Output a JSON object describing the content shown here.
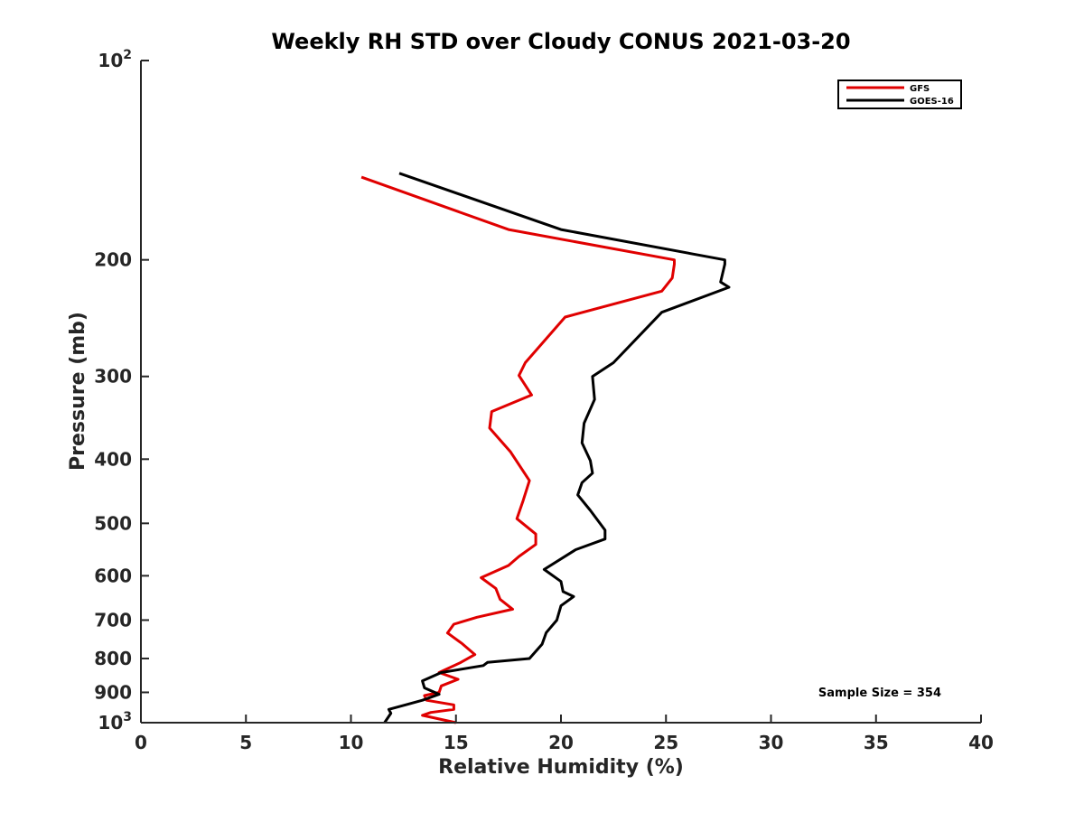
{
  "chart_data": {
    "type": "line",
    "title": "Weekly RH STD over Cloudy CONUS 2021-03-20",
    "xlabel": "Relative Humidity (%)",
    "ylabel": "Pressure (mb)",
    "xlim": [
      0,
      40
    ],
    "ylim": [
      100,
      1000
    ],
    "y_scale": "log",
    "y_reversed": true,
    "grid": false,
    "legend_position": "top-right",
    "x_ticks": [
      0,
      5,
      10,
      15,
      20,
      25,
      30,
      35,
      40
    ],
    "x_tick_labels": [
      "0",
      "5",
      "10",
      "15",
      "20",
      "25",
      "30",
      "35",
      "40"
    ],
    "y_ticks": [
      {
        "value": 100,
        "base": "10",
        "exp": "2"
      },
      {
        "value": 200,
        "label": "200"
      },
      {
        "value": 300,
        "label": "300"
      },
      {
        "value": 400,
        "label": "400"
      },
      {
        "value": 500,
        "label": "500"
      },
      {
        "value": 600,
        "label": "600"
      },
      {
        "value": 700,
        "label": "700"
      },
      {
        "value": 800,
        "label": "800"
      },
      {
        "value": 900,
        "label": "900"
      },
      {
        "value": 1000,
        "base": "10",
        "exp": "3"
      }
    ],
    "series": [
      {
        "name": "GFS",
        "color": "#e00000",
        "x": [
          10.5,
          17.5,
          25.4,
          25.4,
          25.3,
          24.8,
          20.2,
          18.3,
          18.0,
          18.6,
          16.7,
          16.6,
          17.6,
          18.5,
          18.2,
          17.9,
          18.8,
          18.8,
          18.0,
          17.5,
          16.2,
          16.9,
          17.1,
          17.7,
          16.0,
          14.9,
          14.6,
          15.3,
          15.9,
          15.2,
          14.2,
          15.1,
          14.3,
          14.2,
          13.5,
          13.6,
          14.9,
          14.9,
          13.8,
          13.4,
          15.0
        ],
        "y": [
          150,
          180,
          200,
          203,
          213,
          223,
          244,
          286,
          299,
          320,
          339,
          359,
          390,
          431,
          462,
          492,
          519,
          538,
          561,
          579,
          604,
          627,
          651,
          674,
          693,
          710,
          732,
          760,
          789,
          812,
          840,
          860,
          880,
          900,
          910,
          925,
          940,
          955,
          965,
          975,
          1000
        ]
      },
      {
        "name": "GOES-16",
        "color": "#000000",
        "x": [
          12.3,
          20.0,
          27.8,
          27.8,
          27.6,
          28.0,
          24.8,
          22.5,
          21.5,
          21.6,
          21.1,
          21.0,
          21.4,
          21.5,
          21.0,
          20.8,
          21.4,
          22.1,
          22.1,
          20.7,
          19.2,
          20.0,
          20.1,
          20.6,
          20.0,
          19.8,
          19.3,
          19.1,
          18.5,
          16.5,
          16.3,
          14.3,
          13.4,
          13.5,
          14.2,
          13.4,
          12.6,
          11.8,
          11.9,
          11.6
        ],
        "y": [
          148,
          180,
          200,
          203,
          216,
          220,
          240,
          286,
          300,
          325,
          353,
          378,
          402,
          420,
          434,
          453,
          478,
          512,
          528,
          548,
          587,
          612,
          634,
          645,
          666,
          700,
          731,
          761,
          800,
          811,
          820,
          840,
          865,
          886,
          906,
          925,
          940,
          955,
          968,
          1000
        ]
      }
    ],
    "annotation": "Sample Size = 354"
  }
}
